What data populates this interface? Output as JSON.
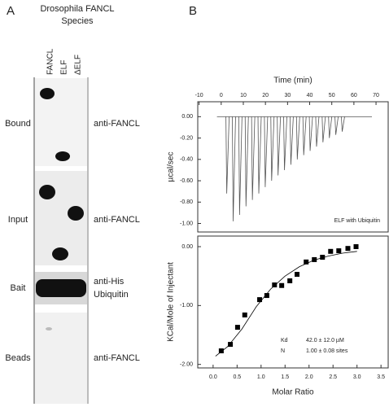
{
  "panel_a": {
    "label": "A",
    "title": [
      "Drosophila FANCL",
      "Species"
    ],
    "lanes": [
      "FANCL",
      "ELF",
      "ΔELF"
    ],
    "rows": [
      {
        "label": "Bound",
        "antibody": [
          "anti-FANCL"
        ]
      },
      {
        "label": "Input",
        "antibody": [
          "anti-FANCL"
        ]
      },
      {
        "label": "Bait",
        "antibody": [
          "anti-His",
          "Ubiquitin"
        ]
      },
      {
        "label": "Beads",
        "antibody": [
          "anti-FANCL"
        ]
      }
    ]
  },
  "panel_b_label": "B",
  "chart_data": [
    {
      "type": "spikes",
      "xlabel": "Time (min)",
      "ylabel": "µcal/sec",
      "annotation": "ELF with Ubiquitin",
      "color": "#555555",
      "x": [
        2.5,
        5.4,
        8.3,
        11.2,
        14.1,
        17.0,
        19.9,
        22.8,
        25.7,
        28.6,
        31.5,
        34.4,
        37.3,
        40.2,
        43.1,
        46.0,
        48.9,
        51.8,
        54.7
      ],
      "values": [
        -0.72,
        -0.98,
        -0.92,
        -0.84,
        -0.78,
        -0.72,
        -0.66,
        -0.6,
        -0.55,
        -0.5,
        -0.45,
        -0.4,
        -0.36,
        -0.32,
        -0.28,
        -0.24,
        -0.2,
        -0.17,
        -0.14
      ],
      "xlim": [
        -10.6,
        75.5
      ],
      "xticks": [
        -10,
        0,
        10,
        20,
        30,
        40,
        50,
        60,
        70
      ],
      "ylim": [
        -1.08,
        0.14
      ],
      "yticks": [
        {
          "value": 0,
          "label": "0.00"
        },
        {
          "value": -0.2,
          "label": "-0.20"
        },
        {
          "value": -0.4,
          "label": "-0.40"
        },
        {
          "value": -0.6,
          "label": "-0.60"
        },
        {
          "value": -0.8,
          "label": "-0.80"
        },
        {
          "value": -1,
          "label": "-1.00"
        }
      ]
    },
    {
      "type": "scatter",
      "xlabel": "Molar Ratio",
      "ylabel": "KCal/Mole of Injectant",
      "color": "#000000",
      "annotations": [
        "Kd",
        "42.0 ± 12.0 µM",
        "N",
        "1.00 ± 0.08 sites"
      ],
      "x": [
        0.17,
        0.36,
        0.51,
        0.66,
        0.97,
        1.12,
        1.28,
        1.43,
        1.6,
        1.75,
        1.94,
        2.11,
        2.28,
        2.45,
        2.62,
        2.81,
        2.98
      ],
      "values": [
        -1.77,
        -1.66,
        -1.37,
        -1.16,
        -0.9,
        -0.83,
        -0.65,
        -0.66,
        -0.58,
        -0.47,
        -0.26,
        -0.22,
        -0.18,
        -0.08,
        -0.07,
        -0.03,
        0.0
      ],
      "fit_x": [
        0.05,
        0.3,
        0.6,
        0.9,
        1.2,
        1.5,
        1.8,
        2.1,
        2.4,
        2.7,
        3.0
      ],
      "fit_values": [
        -1.86,
        -1.7,
        -1.4,
        -1.02,
        -0.72,
        -0.5,
        -0.34,
        -0.23,
        -0.16,
        -0.11,
        -0.08
      ],
      "xlim": [
        -0.32,
        3.65
      ],
      "xticks": [
        {
          "value": 0,
          "label": "0.0"
        },
        0.5,
        {
          "value": 1,
          "label": "1.0"
        },
        1.5,
        {
          "value": 2,
          "label": "2.0"
        },
        2.5,
        {
          "value": 3,
          "label": "3.0"
        },
        3.5
      ],
      "ylim": [
        -2.06,
        0.18
      ],
      "yticks": [
        {
          "value": 0,
          "label": "0.00"
        },
        {
          "value": -1,
          "label": "-1.00"
        },
        {
          "value": -2,
          "label": "-2.00"
        }
      ]
    }
  ]
}
